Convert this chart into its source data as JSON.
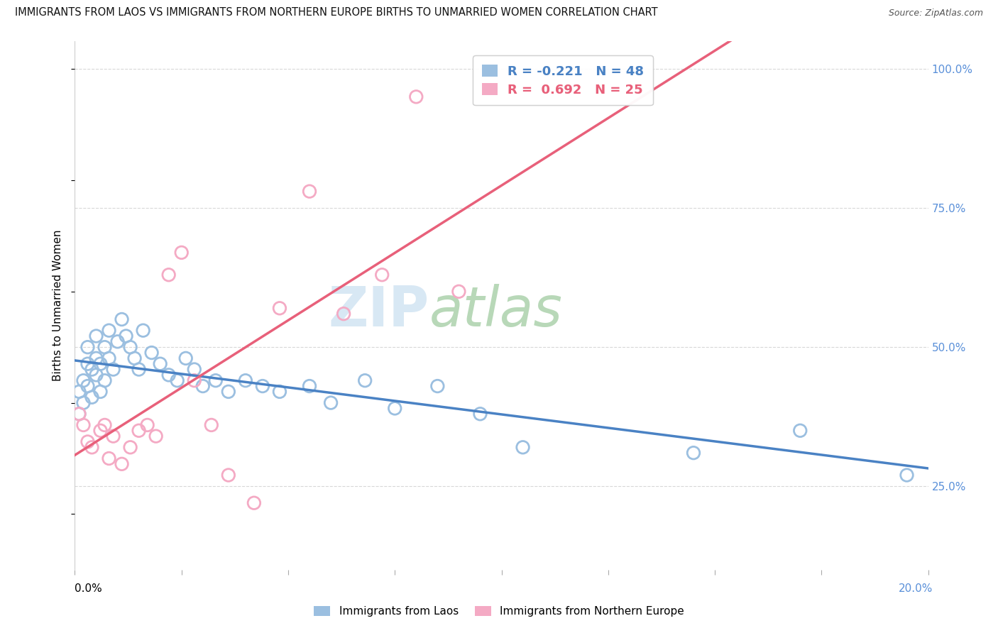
{
  "title": "IMMIGRANTS FROM LAOS VS IMMIGRANTS FROM NORTHERN EUROPE BIRTHS TO UNMARRIED WOMEN CORRELATION CHART",
  "source": "Source: ZipAtlas.com",
  "ylabel": "Births to Unmarried Women",
  "R_blue": -0.221,
  "N_blue": 48,
  "R_pink": 0.692,
  "N_pink": 25,
  "blue_dot_color": "#9bbfe0",
  "pink_dot_color": "#f4aac4",
  "blue_line_color": "#4a82c4",
  "pink_line_color": "#e8607a",
  "dash_color": "#e8b0be",
  "watermark_zip_color": "#d8e8f4",
  "watermark_atlas_color": "#b8d8b8",
  "grid_color": "#d8d8d8",
  "x_min": 0.0,
  "x_max": 0.2,
  "y_min": 0.1,
  "y_max": 1.05,
  "yticks": [
    0.25,
    0.5,
    0.75,
    1.0
  ],
  "ytick_labels": [
    "25.0%",
    "50.0%",
    "75.0%",
    "100.0%"
  ],
  "blue_x": [
    0.001,
    0.001,
    0.002,
    0.002,
    0.003,
    0.003,
    0.003,
    0.004,
    0.004,
    0.005,
    0.005,
    0.005,
    0.006,
    0.006,
    0.007,
    0.007,
    0.008,
    0.008,
    0.009,
    0.01,
    0.011,
    0.012,
    0.013,
    0.014,
    0.015,
    0.016,
    0.018,
    0.02,
    0.022,
    0.024,
    0.026,
    0.028,
    0.03,
    0.033,
    0.036,
    0.04,
    0.044,
    0.048,
    0.055,
    0.06,
    0.068,
    0.075,
    0.085,
    0.095,
    0.105,
    0.145,
    0.17,
    0.195
  ],
  "blue_y": [
    0.38,
    0.42,
    0.44,
    0.4,
    0.47,
    0.43,
    0.5,
    0.46,
    0.41,
    0.48,
    0.45,
    0.52,
    0.47,
    0.42,
    0.5,
    0.44,
    0.53,
    0.48,
    0.46,
    0.51,
    0.55,
    0.52,
    0.5,
    0.48,
    0.46,
    0.53,
    0.49,
    0.47,
    0.45,
    0.44,
    0.48,
    0.46,
    0.43,
    0.44,
    0.42,
    0.44,
    0.43,
    0.42,
    0.43,
    0.4,
    0.44,
    0.39,
    0.43,
    0.38,
    0.32,
    0.31,
    0.35,
    0.27
  ],
  "pink_x": [
    0.001,
    0.002,
    0.003,
    0.004,
    0.006,
    0.007,
    0.008,
    0.009,
    0.011,
    0.013,
    0.015,
    0.017,
    0.019,
    0.022,
    0.025,
    0.028,
    0.032,
    0.036,
    0.042,
    0.048,
    0.055,
    0.063,
    0.072,
    0.08,
    0.09
  ],
  "pink_y": [
    0.38,
    0.36,
    0.33,
    0.32,
    0.35,
    0.36,
    0.3,
    0.34,
    0.29,
    0.32,
    0.35,
    0.36,
    0.34,
    0.63,
    0.67,
    0.44,
    0.36,
    0.27,
    0.22,
    0.57,
    0.78,
    0.56,
    0.63,
    0.95,
    0.6
  ]
}
